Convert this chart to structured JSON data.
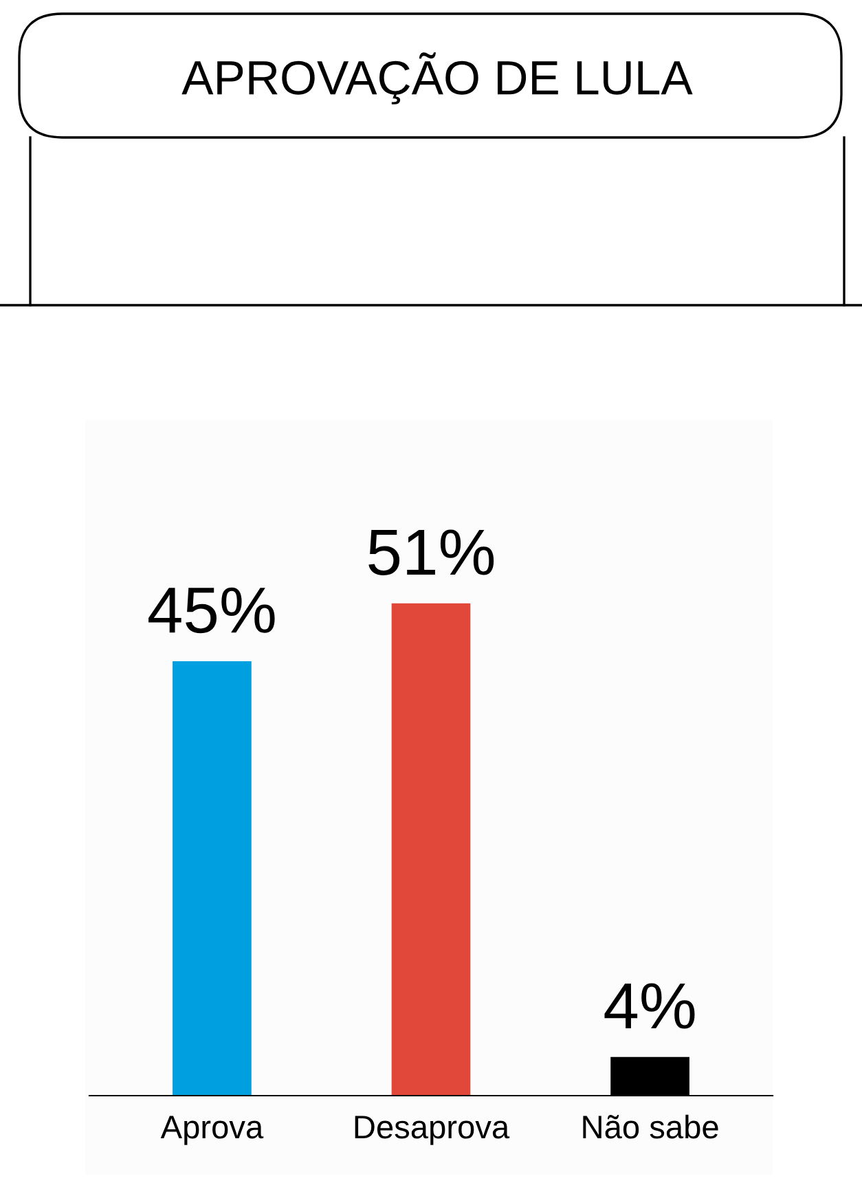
{
  "chart_data": {
    "type": "bar",
    "title": "APROVAÇÃO DE LULA",
    "categories": [
      "Aprova",
      "Desaprova",
      "Não sabe"
    ],
    "values": [
      45,
      51,
      4
    ],
    "colors": [
      "#009fdf",
      "#e2483a",
      "#000000"
    ],
    "value_labels": [
      "45%",
      "51%",
      "4%"
    ],
    "grid": false,
    "legend": false
  }
}
